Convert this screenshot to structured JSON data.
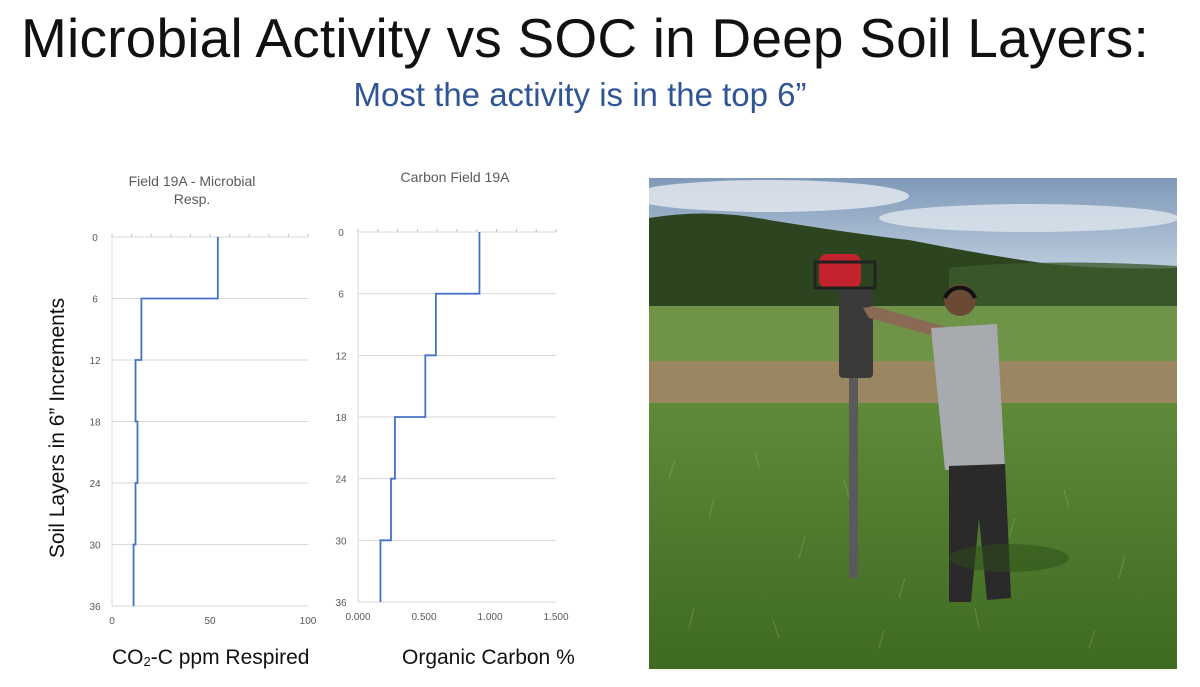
{
  "slide": {
    "title": "Microbial Activity vs SOC in Deep Soil Layers:",
    "subtitle": "Most the activity is in the top 6”",
    "y_axis_label": "Soil Layers in 6” Increments"
  },
  "colors": {
    "line": "#4472c4",
    "grid": "#d9d9d9",
    "subtitle": "#2f5597"
  },
  "chart_data": [
    {
      "type": "line",
      "title_line1": "Field 19A -  Microbial",
      "title_line2": "Resp.",
      "xlabel_prefix": "CO",
      "xlabel_sub": "2",
      "xlabel_suffix": "-C ppm Respired",
      "x_ticks": [
        "0",
        "50",
        "100"
      ],
      "xlim": [
        0,
        100
      ],
      "y_ticks": [
        "0",
        "6",
        "12",
        "18",
        "24",
        "30",
        "36"
      ],
      "ylim": [
        0,
        36
      ],
      "depth_layers": [
        [
          0,
          6
        ],
        [
          6,
          12
        ],
        [
          12,
          18
        ],
        [
          18,
          24
        ],
        [
          24,
          30
        ],
        [
          30,
          36
        ]
      ],
      "values": [
        54,
        15,
        12,
        13,
        12,
        11
      ]
    },
    {
      "type": "line",
      "title_line1": "Carbon Field 19A",
      "xlabel": "Organic Carbon %",
      "x_ticks": [
        "0.000",
        "0.500",
        "1.000",
        "1.500"
      ],
      "xlim": [
        0,
        1.5
      ],
      "y_ticks": [
        "0",
        "6",
        "12",
        "18",
        "24",
        "30",
        "36"
      ],
      "ylim": [
        0,
        36
      ],
      "depth_layers": [
        [
          0,
          6
        ],
        [
          6,
          12
        ],
        [
          12,
          18
        ],
        [
          18,
          24
        ],
        [
          24,
          30
        ],
        [
          30,
          36
        ]
      ],
      "values": [
        0.92,
        0.59,
        0.51,
        0.28,
        0.25,
        0.17
      ]
    }
  ]
}
